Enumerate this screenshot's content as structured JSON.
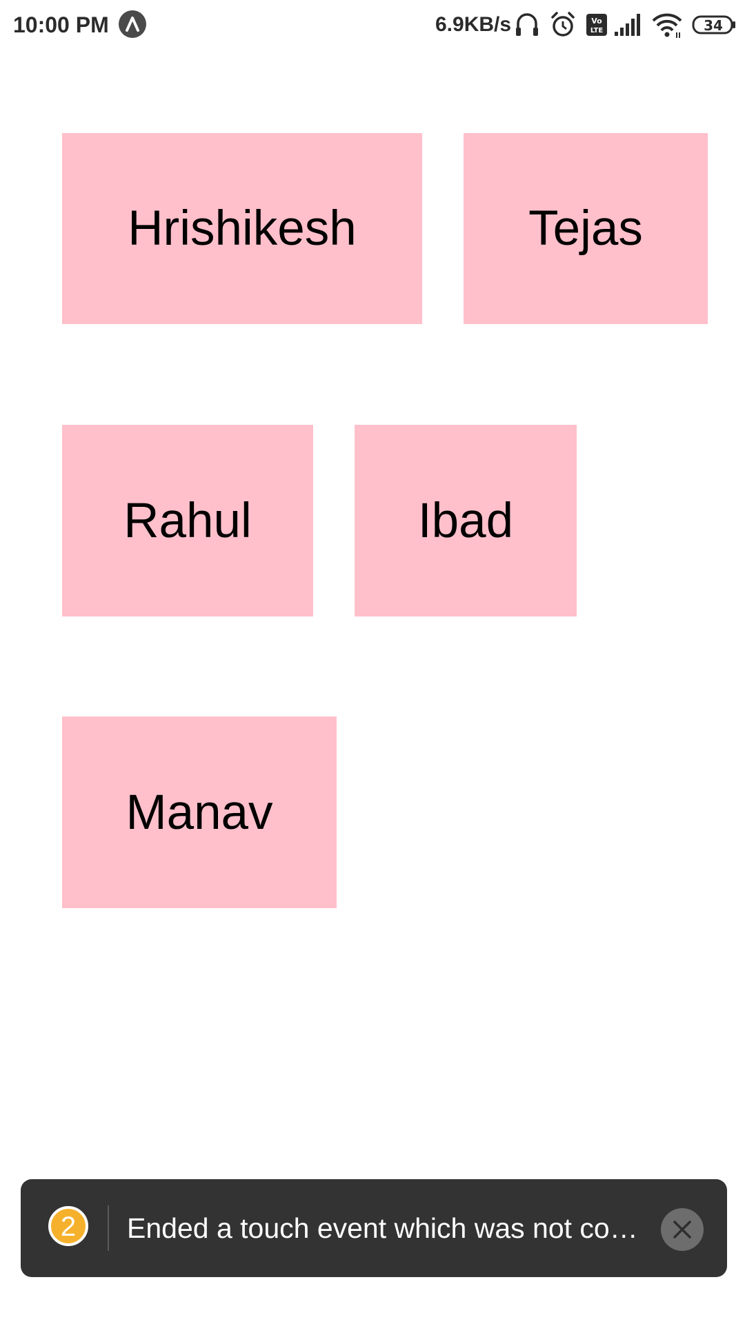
{
  "status_bar": {
    "time": "10:00 PM",
    "network_speed": "6.9KB/s",
    "battery_level": "34",
    "icons": [
      "app-notification-icon",
      "headset-icon",
      "alarm-icon",
      "volte-icon",
      "cellular-signal-icon",
      "wifi-icon",
      "battery-icon"
    ]
  },
  "tiles": [
    {
      "label": "Hrishikesh"
    },
    {
      "label": "Tejas"
    },
    {
      "label": "Rahul"
    },
    {
      "label": "Ibad"
    },
    {
      "label": "Manav"
    }
  ],
  "toast": {
    "count": "2",
    "message": "Ended a touch event which was not co…",
    "close_icon": "close-icon"
  },
  "colors": {
    "tile_background": "#ffc0cb",
    "toast_background": "#333333",
    "badge": "#f6b12c"
  }
}
